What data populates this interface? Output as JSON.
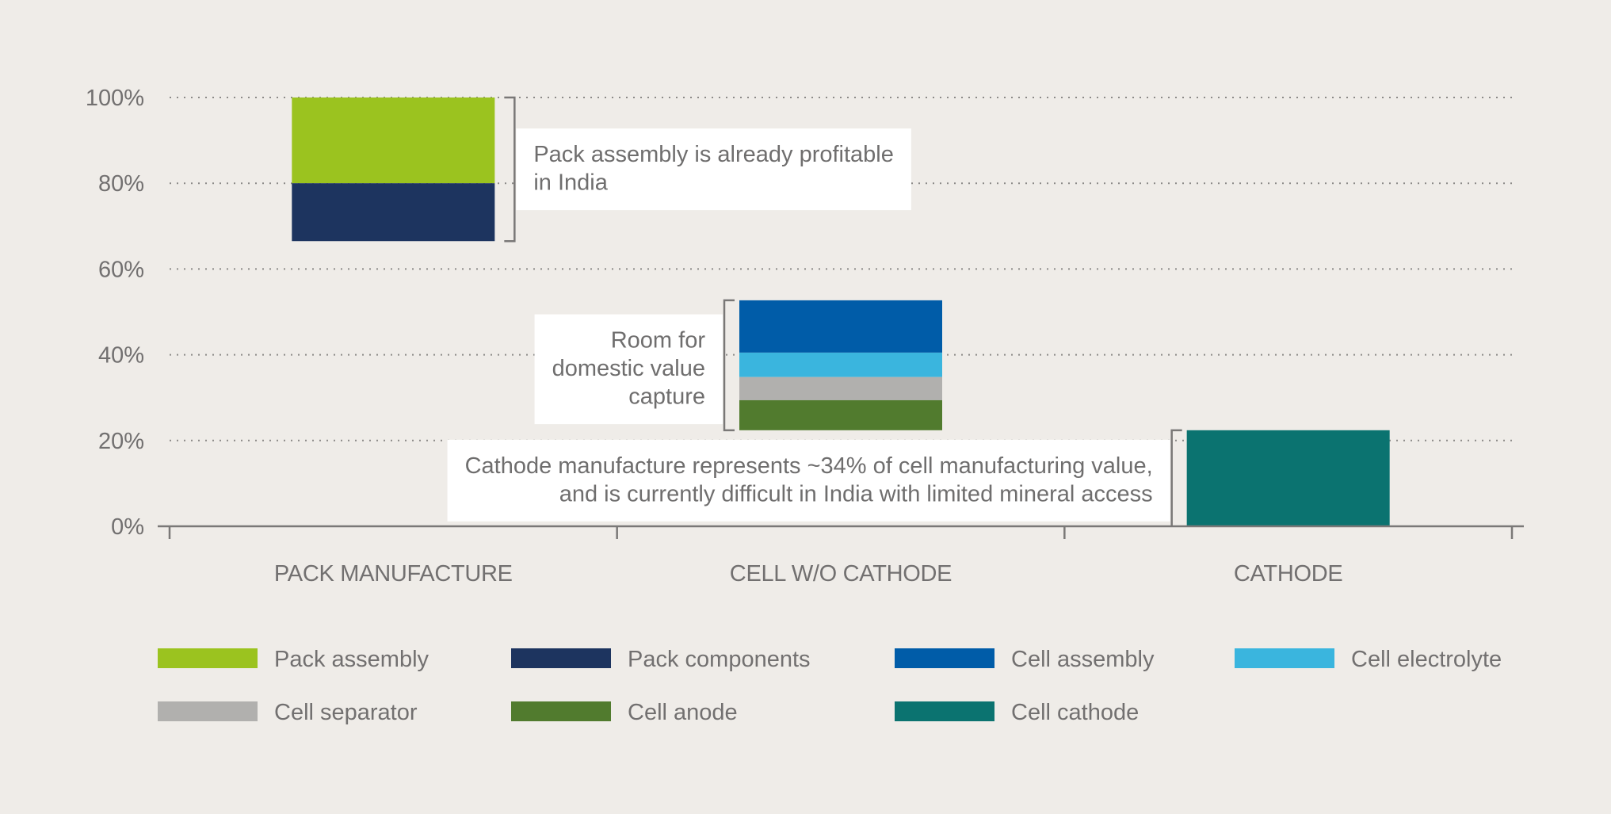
{
  "chart_data": {
    "type": "bar",
    "subtype": "floating-stacked (waterfall)",
    "title": "",
    "xlabel": "",
    "ylabel": "",
    "ylim": [
      0,
      100
    ],
    "y_ticks": [
      "0%",
      "20%",
      "40%",
      "60%",
      "80%",
      "100%"
    ],
    "y_tick_values": [
      0,
      20,
      40,
      60,
      80,
      100
    ],
    "grid": "horizontal dotted",
    "legend_position": "bottom",
    "categories": [
      "PACK MANUFACTURE",
      "CELL W/O CATHODE",
      "CATHODE"
    ],
    "series": [
      {
        "name": "Pack assembly",
        "color": "#9bc31f",
        "category": "PACK MANUFACTURE",
        "from": 80,
        "to": 100
      },
      {
        "name": "Pack components",
        "color": "#1d345f",
        "category": "PACK MANUFACTURE",
        "from": 66.5,
        "to": 80
      },
      {
        "name": "Cell assembly",
        "color": "#005ca8",
        "category": "CELL W/O CATHODE",
        "from": 40.5,
        "to": 52.7
      },
      {
        "name": "Cell electrolyte",
        "color": "#3ab5de",
        "category": "CELL W/O CATHODE",
        "from": 34.8,
        "to": 40.5
      },
      {
        "name": "Cell separator",
        "color": "#b1b0ae",
        "category": "CELL W/O CATHODE",
        "from": 29.4,
        "to": 34.8
      },
      {
        "name": "Cell anode",
        "color": "#517b2e",
        "category": "CELL W/O CATHODE",
        "from": 22.4,
        "to": 29.4
      },
      {
        "name": "Cell cathode",
        "color": "#0b7370",
        "category": "CATHODE",
        "from": 0,
        "to": 22.4
      }
    ],
    "legend": [
      [
        "Pack assembly",
        "Pack components",
        "Cell assembly",
        "Cell electrolyte"
      ],
      [
        "Cell separator",
        "Cell anode",
        "Cell cathode"
      ]
    ],
    "annotations": [
      {
        "id": "pack",
        "category": "PACK MANUFACTURE",
        "bracket_from": 66.5,
        "bracket_to": 100,
        "side": "right",
        "lines": [
          "Pack assembly is already profitable",
          "in India"
        ]
      },
      {
        "id": "cell",
        "category": "CELL W/O CATHODE",
        "bracket_from": 22.4,
        "bracket_to": 52.7,
        "side": "left",
        "lines": [
          "Room for",
          "domestic value",
          "capture"
        ]
      },
      {
        "id": "cathode",
        "category": "CATHODE",
        "bracket_from": 0,
        "bracket_to": 22.4,
        "side": "left",
        "lines": [
          "Cathode manufacture represents ~34% of cell manufacturing value,",
          "and is currently difficult in India with limited mineral access"
        ]
      }
    ]
  }
}
